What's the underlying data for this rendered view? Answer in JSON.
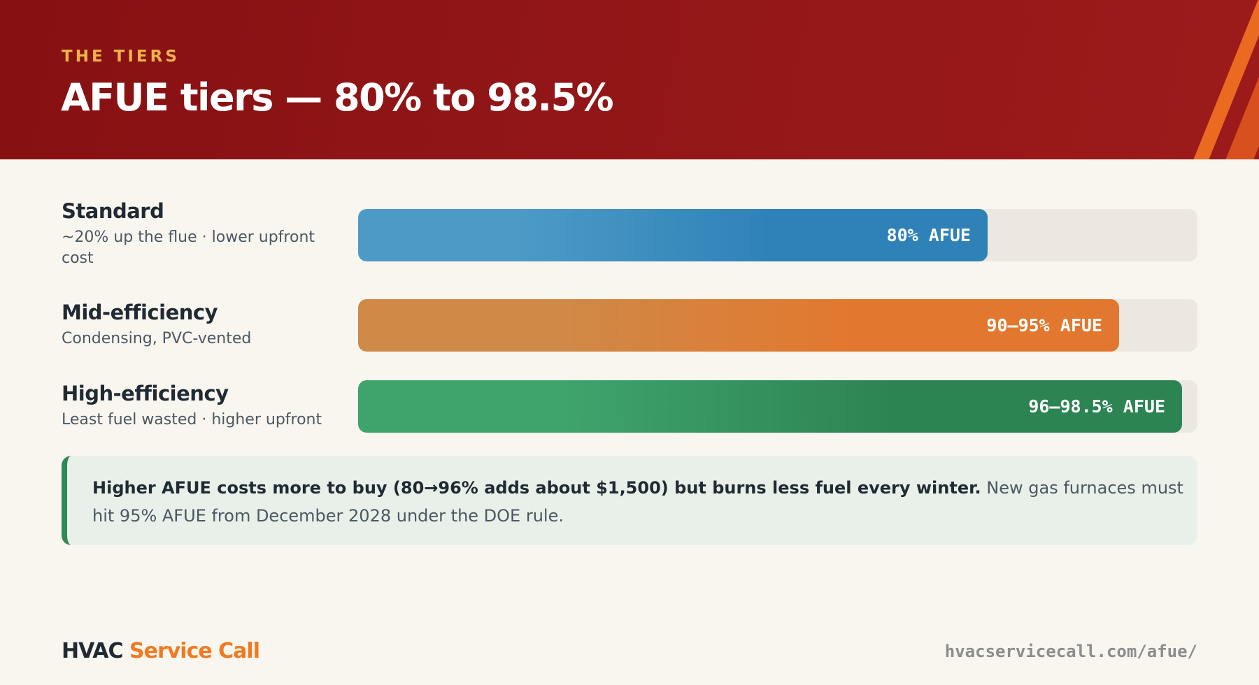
{
  "header": {
    "eyebrow": "THE TIERS",
    "title": "AFUE tiers — 80% to 98.5%"
  },
  "chart_data": {
    "type": "bar",
    "orientation": "horizontal",
    "categories": [
      "Standard",
      "Mid-efficiency",
      "High-efficiency"
    ],
    "descriptions": [
      "~20% up the flue · lower upfront cost",
      "Condensing, PVC-vented",
      "Least fuel wasted · higher upfront"
    ],
    "values": [
      80,
      92.5,
      98.5
    ],
    "value_labels": [
      "80% AFUE",
      "90–95% AFUE",
      "96–98.5% AFUE"
    ],
    "xlim": [
      20,
      100
    ],
    "grid": false,
    "colors": [
      "#3a8cc0",
      "#db7a35",
      "#2f8b58"
    ]
  },
  "callout": {
    "bold": "Higher AFUE costs more to buy (80→96% adds about $1,500) but burns less fuel every winter.",
    "rest": " New gas furnaces must hit 95% AFUE from December 2028 under the DOE rule."
  },
  "footer": {
    "brand_part1": "HVAC",
    "brand_part2": "Service Call",
    "url": "hvacservicecall.com/afue/"
  }
}
